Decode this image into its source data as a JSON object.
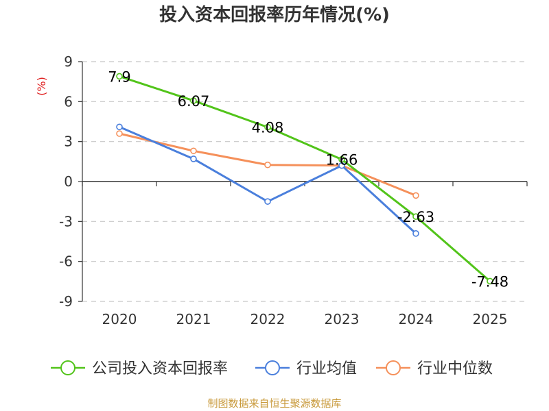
{
  "chart_data": {
    "type": "line",
    "title": "投入资本回报率历年情况(%)",
    "ylabel": "(%)",
    "categories": [
      "2020",
      "2021",
      "2022",
      "2023",
      "2024",
      "2025"
    ],
    "ylim": [
      -9,
      9
    ],
    "yticks": [
      9,
      6,
      3,
      0,
      -3,
      -6,
      -9
    ],
    "series": [
      {
        "name": "公司投入资本回报率",
        "color": "#52c41a",
        "values": [
          7.9,
          6.07,
          4.08,
          1.66,
          -2.63,
          -7.48
        ],
        "labeled": true
      },
      {
        "name": "行业均值",
        "color": "#4a7fdc",
        "values": [
          4.1,
          1.7,
          -1.5,
          1.2,
          -3.9,
          null
        ],
        "labeled": false
      },
      {
        "name": "行业中位数",
        "color": "#f5905a",
        "values": [
          3.6,
          2.3,
          1.25,
          1.2,
          -1.05,
          null
        ],
        "labeled": false
      }
    ],
    "data_labels": [
      "7.9",
      "6.07",
      "4.08",
      "1.66",
      "-2.63",
      "-7.48"
    ],
    "source": "制图数据来自恒生聚源数据库"
  }
}
